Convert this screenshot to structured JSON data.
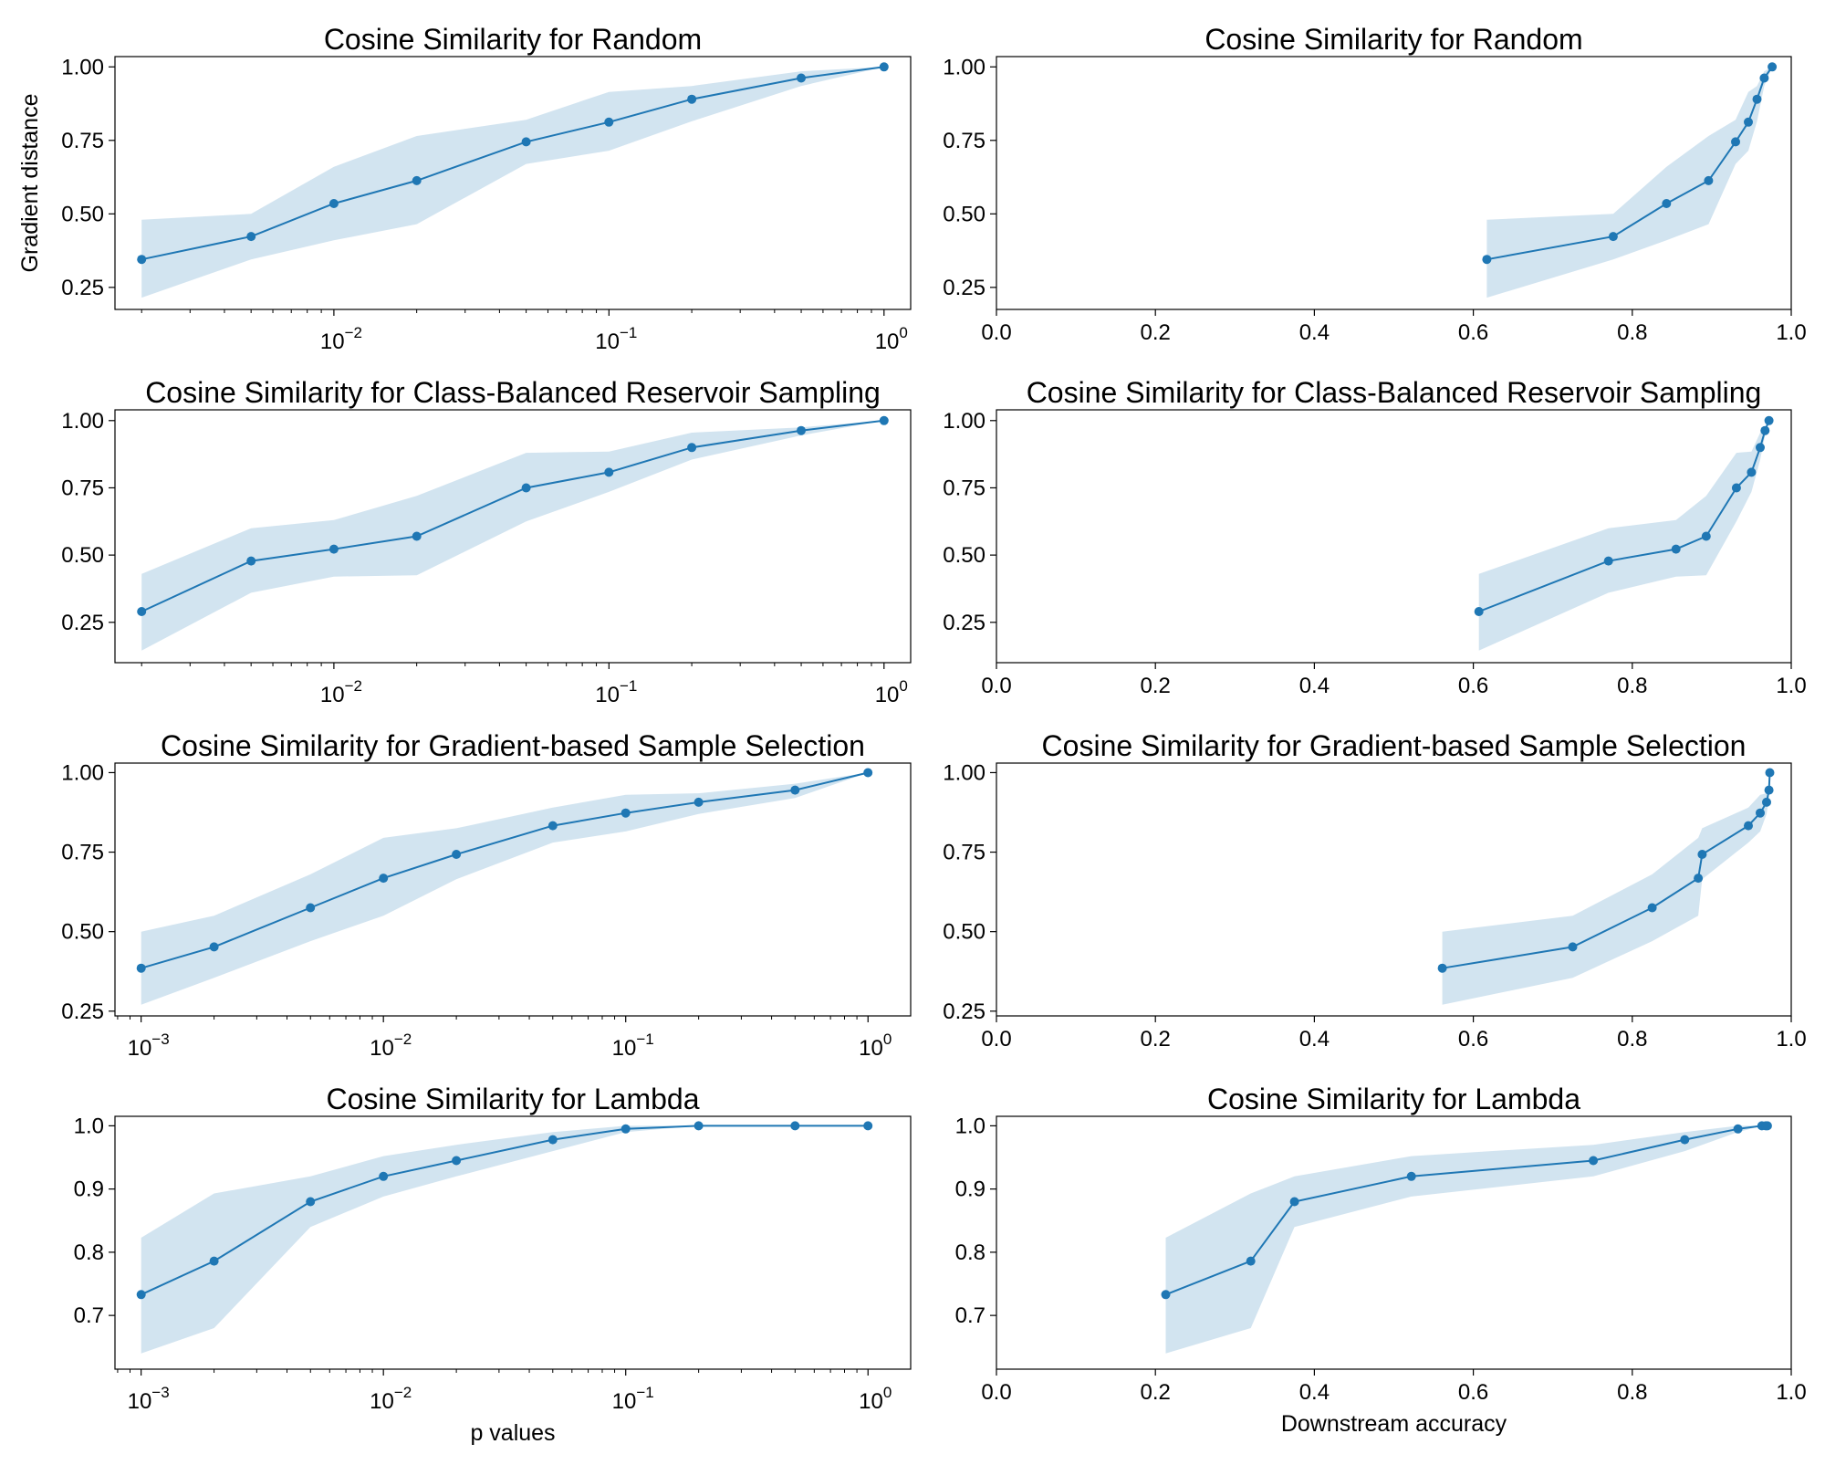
{
  "colors": {
    "line": "#1f77b4",
    "band": "#1f77b4",
    "band_opacity": 0.2,
    "axis": "#000000"
  },
  "chart_data": [
    {
      "type": "line",
      "title": "Cosine Similarity for Random",
      "xlabel": "",
      "ylabel": "Gradient distance",
      "xscale": "log",
      "xlim": [
        0.0016,
        1.25
      ],
      "ylim": [
        0.175,
        1.035
      ],
      "yticks": [
        0.25,
        0.5,
        0.75,
        1.0
      ],
      "ytick_labels": [
        "0.25",
        "0.50",
        "0.75",
        "1.00"
      ],
      "xticks": [
        0.01,
        0.1,
        1
      ],
      "xtick_labels": [
        [
          "10",
          "−2"
        ],
        [
          "10",
          "−1"
        ],
        [
          "10",
          "0"
        ]
      ],
      "grid": false,
      "x": [
        0.002,
        0.005,
        0.01,
        0.02,
        0.05,
        0.1,
        0.2,
        0.5,
        1.0
      ],
      "y": [
        0.345,
        0.423,
        0.535,
        0.613,
        0.745,
        0.812,
        0.89,
        0.962,
        1.0
      ],
      "y_lower": [
        0.215,
        0.345,
        0.41,
        0.465,
        0.67,
        0.715,
        0.815,
        0.935,
        1.0
      ],
      "y_upper": [
        0.48,
        0.5,
        0.66,
        0.765,
        0.82,
        0.915,
        0.935,
        0.985,
        1.0
      ]
    },
    {
      "type": "line",
      "title": "Cosine Similarity for Random",
      "xlabel": "",
      "ylabel": "",
      "xscale": "linear",
      "xlim": [
        0.0,
        1.0
      ],
      "ylim": [
        0.175,
        1.035
      ],
      "yticks": [
        0.25,
        0.5,
        0.75,
        1.0
      ],
      "ytick_labels": [
        "0.25",
        "0.50",
        "0.75",
        "1.00"
      ],
      "xticks": [
        0.0,
        0.2,
        0.4,
        0.6,
        0.8,
        1.0
      ],
      "xtick_labels": [
        "0.0",
        "0.2",
        "0.4",
        "0.6",
        "0.8",
        "1.0"
      ],
      "grid": false,
      "x": [
        0.617,
        0.776,
        0.843,
        0.896,
        0.93,
        0.946,
        0.957,
        0.966,
        0.976
      ],
      "y": [
        0.345,
        0.423,
        0.535,
        0.613,
        0.745,
        0.812,
        0.89,
        0.962,
        1.0
      ],
      "y_lower": [
        0.215,
        0.345,
        0.41,
        0.465,
        0.67,
        0.715,
        0.815,
        0.935,
        1.0
      ],
      "y_upper": [
        0.48,
        0.5,
        0.66,
        0.765,
        0.82,
        0.915,
        0.935,
        0.985,
        1.0
      ]
    },
    {
      "type": "line",
      "title": "Cosine Similarity for Class-Balanced Reservoir Sampling",
      "xlabel": "",
      "ylabel": "",
      "xscale": "log",
      "xlim": [
        0.0016,
        1.25
      ],
      "ylim": [
        0.1,
        1.04
      ],
      "yticks": [
        0.25,
        0.5,
        0.75,
        1.0
      ],
      "ytick_labels": [
        "0.25",
        "0.50",
        "0.75",
        "1.00"
      ],
      "xticks": [
        0.01,
        0.1,
        1
      ],
      "xtick_labels": [
        [
          "10",
          "−2"
        ],
        [
          "10",
          "−1"
        ],
        [
          "10",
          "0"
        ]
      ],
      "grid": false,
      "x": [
        0.002,
        0.005,
        0.01,
        0.02,
        0.05,
        0.1,
        0.2,
        0.5,
        1.0
      ],
      "y": [
        0.29,
        0.478,
        0.522,
        0.57,
        0.75,
        0.808,
        0.9,
        0.963,
        1.0
      ],
      "y_lower": [
        0.145,
        0.36,
        0.42,
        0.425,
        0.625,
        0.735,
        0.855,
        0.945,
        1.0
      ],
      "y_upper": [
        0.43,
        0.6,
        0.63,
        0.72,
        0.88,
        0.885,
        0.955,
        0.975,
        1.0
      ]
    },
    {
      "type": "line",
      "title": "Cosine Similarity for Class-Balanced Reservoir Sampling",
      "xlabel": "",
      "ylabel": "",
      "xscale": "linear",
      "xlim": [
        0.0,
        1.0
      ],
      "ylim": [
        0.1,
        1.04
      ],
      "yticks": [
        0.25,
        0.5,
        0.75,
        1.0
      ],
      "ytick_labels": [
        "0.25",
        "0.50",
        "0.75",
        "1.00"
      ],
      "xticks": [
        0.0,
        0.2,
        0.4,
        0.6,
        0.8,
        1.0
      ],
      "xtick_labels": [
        "0.0",
        "0.2",
        "0.4",
        "0.6",
        "0.8",
        "1.0"
      ],
      "grid": false,
      "x": [
        0.607,
        0.77,
        0.855,
        0.893,
        0.931,
        0.95,
        0.961,
        0.967,
        0.972
      ],
      "y": [
        0.29,
        0.478,
        0.522,
        0.57,
        0.75,
        0.808,
        0.9,
        0.963,
        1.0
      ],
      "y_lower": [
        0.145,
        0.36,
        0.42,
        0.425,
        0.625,
        0.735,
        0.855,
        0.945,
        1.0
      ],
      "y_upper": [
        0.43,
        0.6,
        0.63,
        0.72,
        0.88,
        0.885,
        0.955,
        0.975,
        1.0
      ]
    },
    {
      "type": "line",
      "title": "Cosine Similarity for Gradient-based Sample Selection",
      "xlabel": "",
      "ylabel": "",
      "xscale": "log",
      "xlim": [
        0.00078,
        1.5
      ],
      "ylim": [
        0.235,
        1.03
      ],
      "yticks": [
        0.25,
        0.5,
        0.75,
        1.0
      ],
      "ytick_labels": [
        "0.25",
        "0.50",
        "0.75",
        "1.00"
      ],
      "xticks": [
        0.001,
        0.01,
        0.1,
        1
      ],
      "xtick_labels": [
        [
          "10",
          "−3"
        ],
        [
          "10",
          "−2"
        ],
        [
          "10",
          "−1"
        ],
        [
          "10",
          "0"
        ]
      ],
      "grid": false,
      "x": [
        0.001,
        0.002,
        0.005,
        0.01,
        0.02,
        0.05,
        0.1,
        0.2,
        0.5,
        1.0
      ],
      "y": [
        0.385,
        0.452,
        0.575,
        0.668,
        0.743,
        0.833,
        0.873,
        0.907,
        0.945,
        1.0
      ],
      "y_lower": [
        0.27,
        0.355,
        0.47,
        0.55,
        0.665,
        0.78,
        0.815,
        0.87,
        0.92,
        1.0
      ],
      "y_upper": [
        0.5,
        0.55,
        0.68,
        0.795,
        0.825,
        0.89,
        0.93,
        0.935,
        0.965,
        1.0
      ]
    },
    {
      "type": "line",
      "title": "Cosine Similarity for Gradient-based Sample Selection",
      "xlabel": "",
      "ylabel": "",
      "xscale": "linear",
      "xlim": [
        0.0,
        1.0
      ],
      "ylim": [
        0.235,
        1.03
      ],
      "yticks": [
        0.25,
        0.5,
        0.75,
        1.0
      ],
      "ytick_labels": [
        "0.25",
        "0.50",
        "0.75",
        "1.00"
      ],
      "xticks": [
        0.0,
        0.2,
        0.4,
        0.6,
        0.8,
        1.0
      ],
      "xtick_labels": [
        "0.0",
        "0.2",
        "0.4",
        "0.6",
        "0.8",
        "1.0"
      ],
      "grid": false,
      "x": [
        0.561,
        0.725,
        0.825,
        0.883,
        0.888,
        0.946,
        0.961,
        0.969,
        0.972,
        0.973
      ],
      "y": [
        0.385,
        0.452,
        0.575,
        0.668,
        0.743,
        0.833,
        0.873,
        0.907,
        0.945,
        1.0
      ],
      "y_lower": [
        0.27,
        0.355,
        0.47,
        0.55,
        0.665,
        0.78,
        0.815,
        0.87,
        0.92,
        1.0
      ],
      "y_upper": [
        0.5,
        0.55,
        0.68,
        0.795,
        0.825,
        0.89,
        0.93,
        0.935,
        0.965,
        1.0
      ]
    },
    {
      "type": "line",
      "title": "Cosine Similarity for Lambda",
      "xlabel": "p values",
      "ylabel": "",
      "xscale": "log",
      "xlim": [
        0.00078,
        1.5
      ],
      "ylim": [
        0.615,
        1.015
      ],
      "yticks": [
        0.7,
        0.8,
        0.9,
        1.0
      ],
      "ytick_labels": [
        "0.7",
        "0.8",
        "0.9",
        "1.0"
      ],
      "xticks": [
        0.001,
        0.01,
        0.1,
        1
      ],
      "xtick_labels": [
        [
          "10",
          "−3"
        ],
        [
          "10",
          "−2"
        ],
        [
          "10",
          "−1"
        ],
        [
          "10",
          "0"
        ]
      ],
      "grid": false,
      "x": [
        0.001,
        0.002,
        0.005,
        0.01,
        0.02,
        0.05,
        0.1,
        0.2,
        0.5,
        1.0
      ],
      "y": [
        0.733,
        0.786,
        0.88,
        0.92,
        0.945,
        0.978,
        0.995,
        1.0,
        1.0,
        1.0
      ],
      "y_lower": [
        0.64,
        0.68,
        0.84,
        0.888,
        0.92,
        0.96,
        0.99,
        1.0,
        1.0,
        1.0
      ],
      "y_upper": [
        0.823,
        0.893,
        0.92,
        0.952,
        0.97,
        0.99,
        1.0,
        1.0,
        1.0,
        1.0
      ]
    },
    {
      "type": "line",
      "title": "Cosine Similarity for Lambda",
      "xlabel": "Downstream accuracy",
      "ylabel": "",
      "xscale": "linear",
      "xlim": [
        0.0,
        1.0
      ],
      "ylim": [
        0.615,
        1.015
      ],
      "yticks": [
        0.7,
        0.8,
        0.9,
        1.0
      ],
      "ytick_labels": [
        "0.7",
        "0.8",
        "0.9",
        "1.0"
      ],
      "xticks": [
        0.0,
        0.2,
        0.4,
        0.6,
        0.8,
        1.0
      ],
      "xtick_labels": [
        "0.0",
        "0.2",
        "0.4",
        "0.6",
        "0.8",
        "1.0"
      ],
      "grid": false,
      "x": [
        0.213,
        0.32,
        0.375,
        0.522,
        0.751,
        0.866,
        0.933,
        0.963,
        0.968,
        0.97
      ],
      "y": [
        0.733,
        0.786,
        0.88,
        0.92,
        0.945,
        0.978,
        0.995,
        1.0,
        1.0,
        1.0
      ],
      "y_lower": [
        0.64,
        0.68,
        0.84,
        0.888,
        0.92,
        0.96,
        0.99,
        1.0,
        1.0,
        1.0
      ],
      "y_upper": [
        0.823,
        0.893,
        0.92,
        0.952,
        0.97,
        0.99,
        1.0,
        1.0,
        1.0,
        1.0
      ]
    }
  ]
}
